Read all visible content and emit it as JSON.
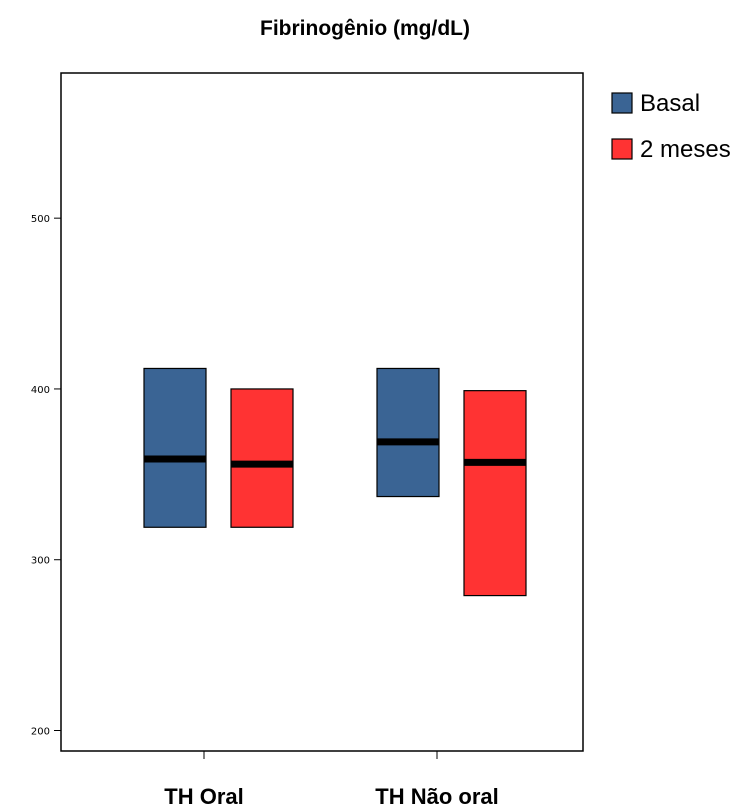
{
  "chart_data": {
    "type": "boxplot",
    "title": "Fibrinogênio (mg/dL)",
    "xlabel": "",
    "ylabel": "",
    "ylim": [
      188,
      585
    ],
    "yticks": [
      200,
      300,
      400,
      500
    ],
    "categories": [
      "TH Oral",
      "TH Não oral"
    ],
    "series": [
      {
        "name": "Basal",
        "color": "#3a6494",
        "boxes": [
          {
            "q1": 319,
            "median": 359,
            "q3": 412
          },
          {
            "q1": 337,
            "median": 369,
            "q3": 412
          }
        ]
      },
      {
        "name": "2 meses",
        "color": "#ff3333",
        "boxes": [
          {
            "q1": 319,
            "median": 356,
            "q3": 400
          },
          {
            "q1": 279,
            "median": 357,
            "q3": 399
          }
        ]
      }
    ],
    "legend_position": "right"
  }
}
